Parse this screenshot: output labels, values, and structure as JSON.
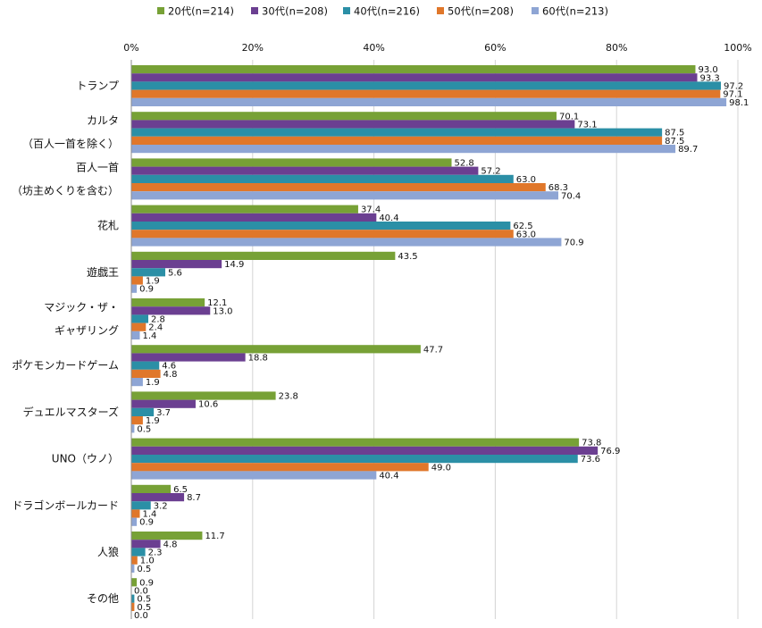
{
  "chart_data": {
    "type": "bar",
    "orientation": "horizontal",
    "title": "",
    "xlabel": "",
    "ylabel": "",
    "xlim": [
      0,
      100
    ],
    "ticks": [
      "0%",
      "20%",
      "40%",
      "60%",
      "80%",
      "100%"
    ],
    "grid": true,
    "legend_position": "top",
    "categories": [
      [
        "トランプ"
      ],
      [
        "カルタ",
        "（百人一首を除く）"
      ],
      [
        "百人一首",
        "（坊主めくりを含む）"
      ],
      [
        "花札"
      ],
      [
        "遊戯王"
      ],
      [
        "マジック・ザ・",
        "ギャザリング"
      ],
      [
        "ポケモンカードゲーム"
      ],
      [
        "デュエルマスターズ"
      ],
      [
        "UNO（ウノ）"
      ],
      [
        "ドラゴンボールカード"
      ],
      [
        "人狼"
      ],
      [
        "その他"
      ]
    ],
    "series": [
      {
        "name": "20代(n=214)",
        "color": "#77a136",
        "values": [
          93.0,
          70.1,
          52.8,
          37.4,
          43.5,
          12.1,
          47.7,
          23.8,
          73.8,
          6.5,
          11.7,
          0.9
        ]
      },
      {
        "name": "30代(n=208)",
        "color": "#6b3f91",
        "values": [
          93.3,
          73.1,
          57.2,
          40.4,
          14.9,
          13.0,
          18.8,
          10.6,
          76.9,
          8.7,
          4.8,
          0.0
        ]
      },
      {
        "name": "40代(n=216)",
        "color": "#2b8fa6",
        "values": [
          97.2,
          87.5,
          63.0,
          62.5,
          5.6,
          2.8,
          4.6,
          3.7,
          73.6,
          3.2,
          2.3,
          0.5
        ]
      },
      {
        "name": "50代(n=208)",
        "color": "#e0772a",
        "values": [
          97.1,
          87.5,
          68.3,
          63.0,
          1.9,
          2.4,
          4.8,
          1.9,
          49.0,
          1.4,
          1.0,
          0.5
        ]
      },
      {
        "name": "60代(n=213)",
        "color": "#8ea5d4",
        "values": [
          98.1,
          89.7,
          70.4,
          70.9,
          0.9,
          1.4,
          1.9,
          0.5,
          40.4,
          0.9,
          0.5,
          0.0
        ]
      }
    ]
  }
}
